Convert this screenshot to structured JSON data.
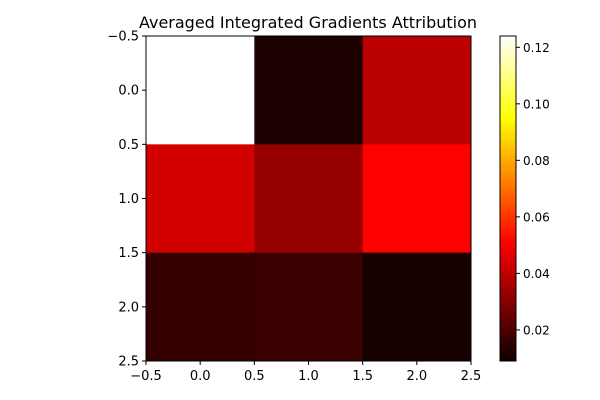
{
  "chart_data": {
    "type": "heatmap",
    "title": "Averaged Integrated Gradients Attribution",
    "xlabel": "",
    "ylabel": "",
    "x_ticks": [
      "−0.5",
      "0.0",
      "0.5",
      "1.0",
      "1.5",
      "2.0",
      "2.5"
    ],
    "y_ticks": [
      "−0.5",
      "0.0",
      "0.5",
      "1.0",
      "1.5",
      "2.0",
      "2.5"
    ],
    "xlim": [
      -0.5,
      2.5
    ],
    "ylim": [
      2.5,
      -0.5
    ],
    "values": [
      [
        0.124,
        0.012,
        0.038
      ],
      [
        0.042,
        0.032,
        0.051
      ],
      [
        0.016,
        0.017,
        0.011
      ]
    ],
    "colormap": "hot",
    "colorbar": {
      "min": 0.009,
      "max": 0.124,
      "ticks": [
        "0.02",
        "0.04",
        "0.06",
        "0.08",
        "0.10",
        "0.12"
      ]
    },
    "grid": false,
    "legend": "none"
  }
}
